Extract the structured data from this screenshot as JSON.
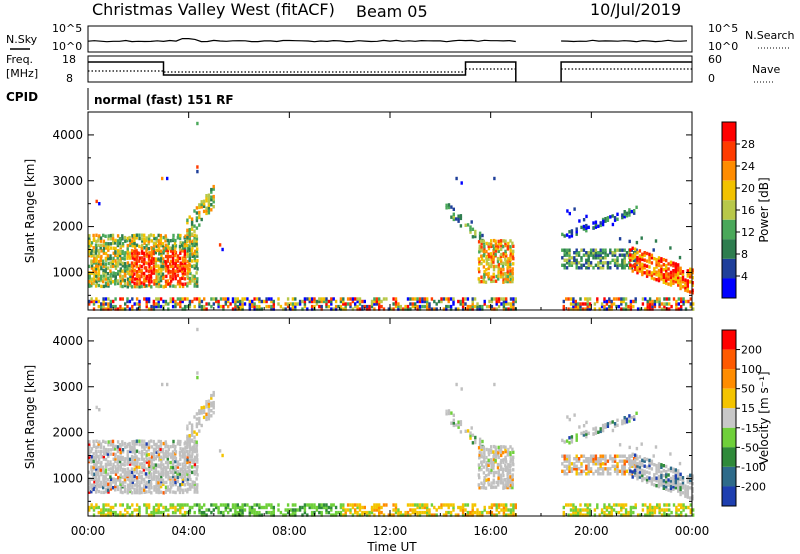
{
  "header": {
    "title": "Christmas Valley West (fitACF)",
    "beam": "Beam 05",
    "date": "10/Jul/2019"
  },
  "strip_labels": {
    "nsky": "N.Sky",
    "nsky_ticks": [
      "10^5",
      "10^0"
    ],
    "nsearch": "N.Search",
    "nsearch_ticks": [
      "10^5",
      "10^0"
    ],
    "freq_line1": "Freq.",
    "freq_line2": "[MHz]",
    "freq_ticks": [
      "18",
      "8"
    ],
    "nave": "Nave",
    "nave_ticks": [
      "60",
      "0"
    ],
    "cpid": "CPID",
    "cpid_text": "normal (fast) 151 RF"
  },
  "colors": {
    "power_scale": [
      "#0000ff",
      "#1f3f9a",
      "#2e7d4f",
      "#4aa85a",
      "#b8c84a",
      "#f2c200",
      "#ff8c00",
      "#ff3b00",
      "#ff0000"
    ],
    "velocity_scale": [
      "#1e3fb0",
      "#2e6b8a",
      "#2f8a3a",
      "#6fd03a",
      "#c8c8c8",
      "#f4c400",
      "#ff8c00",
      "#ff5a00",
      "#ff0000"
    ],
    "ground_scatter": "#c0c0c0"
  },
  "chart_data": [
    {
      "type": "heatmap",
      "name": "power-panel",
      "xlabel": "",
      "ylabel": "Slant Range [km]",
      "yticks": [
        "1000",
        "2000",
        "3000",
        "4000"
      ],
      "colorbar_label": "Power [dB]",
      "colorbar_ticks": [
        "4",
        "8",
        "12",
        "16",
        "20",
        "24",
        "28"
      ],
      "clim": [
        0,
        30
      ],
      "xlim_hours": [
        0,
        24
      ],
      "ylim_km": [
        180,
        4500
      ],
      "data_gap_hours": [
        17.0,
        18.8
      ]
    },
    {
      "type": "heatmap",
      "name": "velocity-panel",
      "xlabel": "Time UT",
      "ylabel": "Slant Range [km]",
      "yticks": [
        "1000",
        "2000",
        "3000",
        "4000"
      ],
      "xticks": [
        "00:00",
        "04:00",
        "08:00",
        "12:00",
        "16:00",
        "20:00",
        "00:00"
      ],
      "colorbar_label": "Velocity [m s⁻¹]",
      "colorbar_ticks": [
        "200",
        "100",
        "50",
        "15",
        "-15",
        "-50",
        "-100",
        "-200"
      ],
      "clim": [
        -250,
        250
      ],
      "xlim_hours": [
        0,
        24
      ],
      "ylim_km": [
        180,
        4500
      ],
      "data_gap_hours": [
        17.0,
        18.8
      ]
    }
  ]
}
